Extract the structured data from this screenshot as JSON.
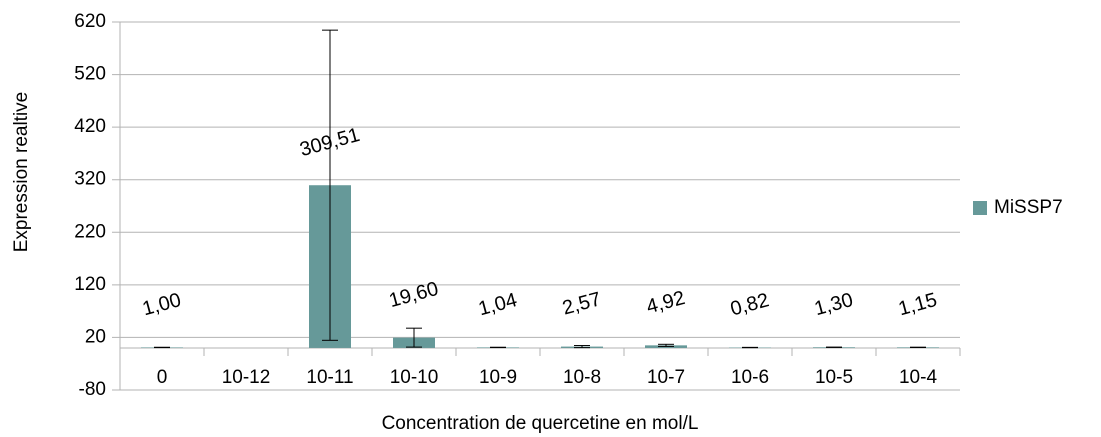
{
  "chart_data": {
    "type": "bar",
    "y_label": "Expression realtive",
    "x_label": "Concentration de quercetine en mol/L",
    "categories": [
      "0",
      "10-12",
      "10-11",
      "10-10",
      "10-9",
      "10-8",
      "10-7",
      "10-6",
      "10-5",
      "10-4"
    ],
    "series": [
      {
        "name": "MiSSP7",
        "color": "#669999",
        "values": [
          1.0,
          null,
          309.51,
          19.6,
          1.04,
          2.57,
          4.92,
          0.82,
          1.3,
          1.15
        ],
        "value_labels": [
          "1,00",
          null,
          "309,51",
          "19,60",
          "1,04",
          "2,57",
          "4,92",
          "0,82",
          "1,30",
          "1,15"
        ],
        "errors": [
          0.3,
          null,
          295,
          18,
          0.3,
          2,
          2,
          0.3,
          0.3,
          0.3
        ]
      }
    ],
    "ylim": [
      -80,
      620
    ],
    "yticks": [
      -80,
      20,
      120,
      220,
      320,
      420,
      520,
      620
    ],
    "grid": true,
    "legend": "right"
  }
}
